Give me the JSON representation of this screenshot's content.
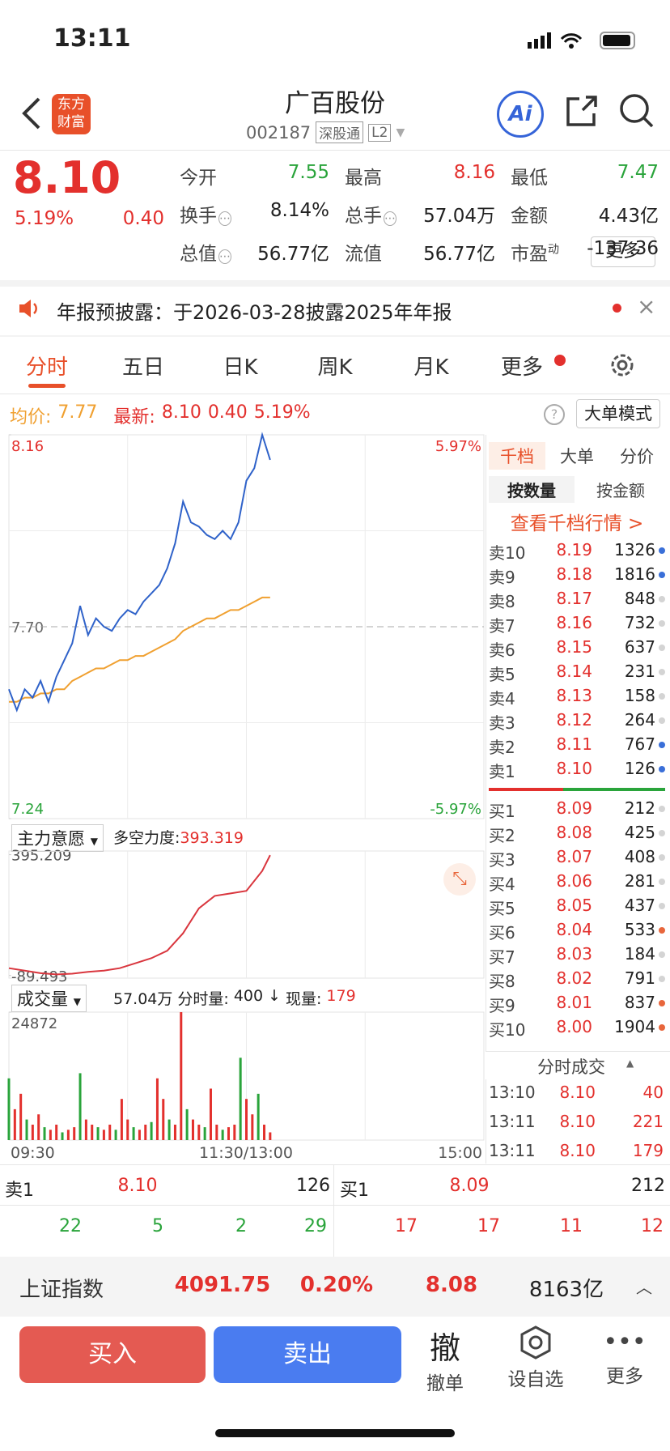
{
  "status_bar": {
    "time": "13:11"
  },
  "header": {
    "logo": [
      "东方",
      "财富"
    ],
    "title": "广百股份",
    "code": "002187",
    "badges": [
      "深股通",
      "L2"
    ],
    "ai": "Ai"
  },
  "quote": {
    "price": "8.10",
    "change_pct": "5.19%",
    "change": "0.40",
    "fields": [
      {
        "label": "今开",
        "value": "7.55",
        "color": "#2aa43b"
      },
      {
        "label": "最高",
        "value": "8.16",
        "color": "#e3302d"
      },
      {
        "label": "最低",
        "value": "7.47",
        "color": "#2aa43b"
      },
      {
        "label": "换手",
        "value": "8.14%",
        "color": "#222"
      },
      {
        "label": "总手",
        "value": "57.04万",
        "color": "#222"
      },
      {
        "label": "金额",
        "value": "4.43亿",
        "color": "#222"
      },
      {
        "label": "总值",
        "value": "56.77亿",
        "color": "#222"
      },
      {
        "label": "流值",
        "value": "56.77亿",
        "color": "#222"
      },
      {
        "label": "市盈",
        "sup": "动",
        "value": "-137.36",
        "color": "#222"
      }
    ],
    "more": "更多"
  },
  "notice": "年报预披露：于2026-03-28披露2025年年报",
  "tabs": [
    "分时",
    "五日",
    "日K",
    "周K",
    "月K",
    "更多"
  ],
  "info": {
    "avg_label": "均价:",
    "avg": "7.77",
    "latest_label": "最新:",
    "latest": "8.10",
    "change": "0.40",
    "change_pct": "5.19%",
    "mode": "大单模式"
  },
  "chart": {
    "ylim": [
      7.24,
      8.16
    ],
    "xlim": [
      0,
      240
    ],
    "yticks": [
      8.16,
      {
        "value": 7.7,
        "label": "7.70"
      },
      7.24
    ],
    "right_labels": [
      "5.97%",
      "-5.97%"
    ],
    "prev_close": 7.7,
    "x_labels": [
      "09:30",
      "11:30/13:00",
      "15:00"
    ],
    "price_color": "#2f62c9",
    "avg_color": "#f0a030",
    "minutes": [
      0,
      4,
      8,
      12,
      16,
      20,
      24,
      28,
      32,
      36,
      40,
      44,
      48,
      52,
      56,
      60,
      64,
      68,
      72,
      76,
      80,
      84,
      88,
      92,
      96,
      100,
      104,
      108,
      112,
      116,
      120,
      124,
      128,
      132
    ],
    "price": [
      7.55,
      7.5,
      7.55,
      7.53,
      7.57,
      7.52,
      7.58,
      7.62,
      7.66,
      7.75,
      7.68,
      7.72,
      7.7,
      7.69,
      7.72,
      7.74,
      7.73,
      7.76,
      7.78,
      7.8,
      7.84,
      7.9,
      8.0,
      7.95,
      7.94,
      7.92,
      7.91,
      7.93,
      7.91,
      7.95,
      8.05,
      8.08,
      8.16,
      8.1
    ],
    "avg": [
      7.52,
      7.52,
      7.53,
      7.53,
      7.54,
      7.54,
      7.55,
      7.55,
      7.57,
      7.58,
      7.59,
      7.6,
      7.6,
      7.61,
      7.62,
      7.62,
      7.63,
      7.63,
      7.64,
      7.65,
      7.66,
      7.67,
      7.69,
      7.7,
      7.71,
      7.72,
      7.72,
      7.73,
      7.74,
      7.74,
      7.75,
      7.76,
      7.77,
      7.77
    ]
  },
  "indicator": {
    "name": "主力意愿",
    "metric_label": "多空力度:",
    "metric": "393.319",
    "ylim": [
      -100,
      410
    ],
    "yticks": [
      395.209,
      -89.493
    ],
    "minutes": [
      0,
      8,
      16,
      24,
      32,
      40,
      48,
      56,
      64,
      72,
      80,
      88,
      96,
      104,
      112,
      120,
      128,
      132
    ],
    "values": [
      -60,
      -70,
      -80,
      -85,
      -82,
      -75,
      -70,
      -60,
      -40,
      -20,
      10,
      80,
      180,
      230,
      240,
      250,
      330,
      393.319
    ]
  },
  "volume": {
    "name": "成交量",
    "total": "57.04万",
    "seg_label": "分时量:",
    "seg": "400",
    "arrow": "↓",
    "now_label": "现量:",
    "now": "179",
    "ylim": [
      0,
      24872
    ],
    "yticks": [
      24872
    ],
    "up_color": "#e3302d",
    "down_color": "#2aa43b",
    "minutes": [
      0,
      3,
      6,
      9,
      12,
      15,
      18,
      21,
      24,
      27,
      30,
      33,
      36,
      39,
      42,
      45,
      48,
      51,
      54,
      57,
      60,
      63,
      66,
      69,
      72,
      75,
      78,
      81,
      84,
      87,
      90,
      93,
      96,
      99,
      102,
      105,
      108,
      111,
      114,
      117,
      120,
      123,
      126,
      129,
      132
    ],
    "values": [
      12000,
      6000,
      9000,
      4000,
      3000,
      5000,
      2500,
      2000,
      3000,
      1500,
      2000,
      2500,
      13000,
      4000,
      3000,
      2500,
      2000,
      3000,
      2000,
      8000,
      4000,
      2500,
      2000,
      3000,
      3500,
      12000,
      8000,
      4000,
      3000,
      24872,
      6000,
      4000,
      3000,
      2500,
      10000,
      3000,
      2000,
      2500,
      3000,
      16000,
      8000,
      5000,
      9000,
      3000,
      1500
    ]
  },
  "book": {
    "tabs": [
      "千档",
      "大单",
      "分价"
    ],
    "sub": [
      "按数量",
      "按金额"
    ],
    "link": "查看千档行情 >",
    "asks": [
      {
        "label": "卖10",
        "price": "8.19",
        "volume": "1326",
        "dot": "#3a6fd8"
      },
      {
        "label": "卖9",
        "price": "8.18",
        "volume": "1816",
        "dot": "#3a6fd8"
      },
      {
        "label": "卖8",
        "price": "8.17",
        "volume": "848",
        "dot": "#d4d4d4"
      },
      {
        "label": "卖7",
        "price": "8.16",
        "volume": "732",
        "dot": "#d4d4d4"
      },
      {
        "label": "卖6",
        "price": "8.15",
        "volume": "637",
        "dot": "#d4d4d4"
      },
      {
        "label": "卖5",
        "price": "8.14",
        "volume": "231",
        "dot": "#d4d4d4"
      },
      {
        "label": "卖4",
        "price": "8.13",
        "volume": "158",
        "dot": "#d4d4d4"
      },
      {
        "label": "卖3",
        "price": "8.12",
        "volume": "264",
        "dot": "#d4d4d4"
      },
      {
        "label": "卖2",
        "price": "8.11",
        "volume": "767",
        "dot": "#3a6fd8"
      },
      {
        "label": "卖1",
        "price": "8.10",
        "volume": "126",
        "dot": "#3a6fd8"
      }
    ],
    "bids": [
      {
        "label": "买1",
        "price": "8.09",
        "volume": "212",
        "dot": "#d4d4d4"
      },
      {
        "label": "买2",
        "price": "8.08",
        "volume": "425",
        "dot": "#d4d4d4"
      },
      {
        "label": "买3",
        "price": "8.07",
        "volume": "408",
        "dot": "#d4d4d4"
      },
      {
        "label": "买4",
        "price": "8.06",
        "volume": "281",
        "dot": "#d4d4d4"
      },
      {
        "label": "买5",
        "price": "8.05",
        "volume": "437",
        "dot": "#d4d4d4"
      },
      {
        "label": "买6",
        "price": "8.04",
        "volume": "533",
        "dot": "#e8663c"
      },
      {
        "label": "买7",
        "price": "8.03",
        "volume": "184",
        "dot": "#d4d4d4"
      },
      {
        "label": "买8",
        "price": "8.02",
        "volume": "791",
        "dot": "#d4d4d4"
      },
      {
        "label": "买9",
        "price": "8.01",
        "volume": "837",
        "dot": "#e8663c"
      },
      {
        "label": "买10",
        "price": "8.00",
        "volume": "1904",
        "dot": "#e8663c"
      }
    ]
  },
  "trades": {
    "title": "分时成交",
    "rows": [
      [
        "13:10",
        "8.10",
        "40"
      ],
      [
        "13:11",
        "8.10",
        "221"
      ],
      [
        "13:11",
        "8.10",
        "179"
      ]
    ]
  },
  "best": {
    "ask": {
      "label": "卖1",
      "price": "8.10",
      "volume": "126"
    },
    "bid": {
      "label": "买1",
      "price": "8.09",
      "volume": "212"
    },
    "ask_counts": [
      "22",
      "5",
      "2",
      "29"
    ],
    "bid_counts": [
      "17",
      "17",
      "11",
      "12"
    ]
  },
  "index_bar": [
    "上证指数",
    "4091.75",
    "0.20%",
    "8.08",
    "8163亿"
  ],
  "actions": {
    "buy": "买入",
    "sell": "卖出",
    "cancel_icon": "撤",
    "cancel": "撤单",
    "watch": "设自选",
    "more": "更多"
  }
}
